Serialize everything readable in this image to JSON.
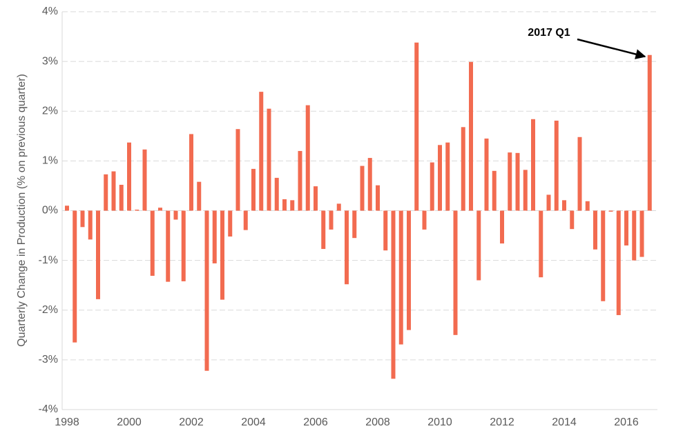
{
  "chart_data": {
    "type": "bar",
    "y_label": "Quarterly Change in Production (% on previous quarter)",
    "annotation": "2017 Q1",
    "categories": [
      "1998",
      null,
      null,
      null,
      null,
      null,
      null,
      null,
      "2000",
      null,
      null,
      null,
      null,
      null,
      null,
      null,
      "2002",
      null,
      null,
      null,
      null,
      null,
      null,
      null,
      "2004",
      null,
      null,
      null,
      null,
      null,
      null,
      null,
      "2006",
      null,
      null,
      null,
      null,
      null,
      null,
      null,
      "2008",
      null,
      null,
      null,
      null,
      null,
      null,
      null,
      "2010",
      null,
      null,
      null,
      null,
      null,
      null,
      null,
      "2012",
      null,
      null,
      null,
      null,
      null,
      null,
      null,
      "2014",
      null,
      null,
      null,
      null,
      null,
      null,
      null,
      "2016",
      null,
      null,
      null
    ],
    "values": [
      0.1,
      -2.65,
      -0.33,
      -0.58,
      -1.78,
      0.73,
      0.79,
      0.52,
      1.37,
      0.02,
      1.23,
      -1.31,
      0.06,
      -1.43,
      -0.18,
      -1.42,
      1.54,
      0.58,
      -3.22,
      -1.06,
      -1.79,
      -0.52,
      1.64,
      -0.39,
      0.84,
      2.39,
      2.05,
      0.66,
      0.23,
      0.21,
      1.2,
      2.12,
      0.49,
      -0.77,
      -0.38,
      0.14,
      -1.48,
      -0.55,
      0.9,
      1.06,
      0.51,
      -0.8,
      -3.38,
      -2.69,
      -2.4,
      3.38,
      -0.38,
      0.97,
      1.32,
      1.37,
      -2.5,
      1.68,
      2.99,
      -1.4,
      1.45,
      0.8,
      -0.66,
      1.17,
      1.16,
      0.82,
      1.84,
      -1.34,
      0.32,
      1.81,
      0.21,
      -0.37,
      1.48,
      0.19,
      -0.78,
      -1.82,
      -0.02,
      -2.1,
      -0.7,
      -1.0,
      -0.93,
      3.13
    ],
    "color": "#f26b50",
    "ylim": [
      -4,
      4
    ],
    "yticks": [
      {
        "value": -4,
        "label": "-4%"
      },
      {
        "value": -3,
        "label": "-3%"
      },
      {
        "value": -2,
        "label": "-2%"
      },
      {
        "value": -1,
        "label": "-1%"
      },
      {
        "value": 0,
        "label": "0%"
      },
      {
        "value": 1,
        "label": "1%"
      },
      {
        "value": 2,
        "label": "2%"
      },
      {
        "value": 3,
        "label": "3%"
      },
      {
        "value": 4,
        "label": "4%"
      }
    ],
    "grid": true
  }
}
